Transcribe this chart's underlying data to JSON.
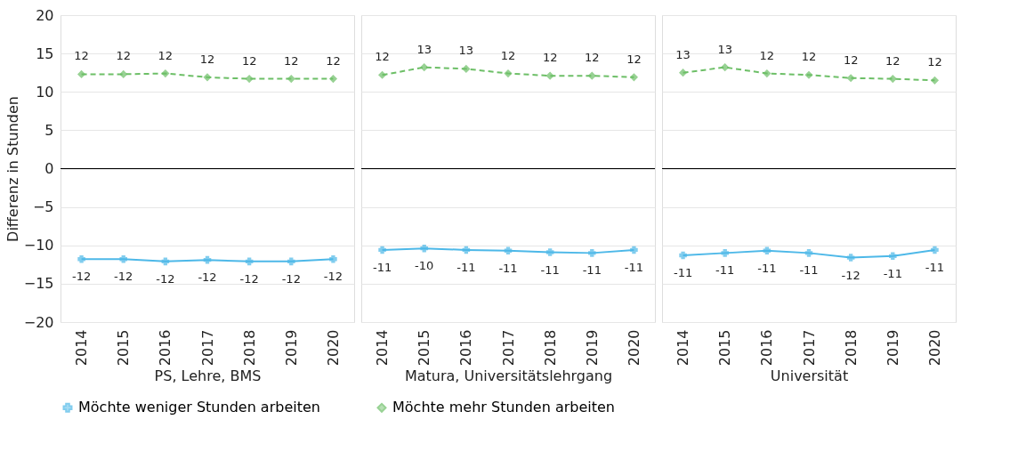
{
  "chart_data": [
    {
      "type": "line",
      "xlabel": "PS, Lehre, BMS",
      "ylabel": "Differenz in  Stunden",
      "categories": [
        "2014",
        "2015",
        "2016",
        "2017",
        "2018",
        "2019",
        "2020"
      ],
      "ylim": [
        -20,
        20
      ],
      "yticks": [
        -20,
        -15,
        -10,
        -5,
        0,
        5,
        10,
        15,
        20
      ],
      "grid": "y",
      "legend": "bottom",
      "ref_lines": [
        {
          "axis": "y",
          "value": 0,
          "color": "#000000"
        }
      ],
      "series": [
        {
          "name": "Möchte weniger Stunden arbeiten",
          "color": "#4db8e8",
          "marker": "cross",
          "line_style": "solid",
          "values": [
            -11.8,
            -11.8,
            -12.1,
            -11.9,
            -12.1,
            -12.1,
            -11.8
          ],
          "value_labels": [
            "-12",
            "-12",
            "-12",
            "-12",
            "-12",
            "-12",
            "-12"
          ]
        },
        {
          "name": "Möchte mehr Stunden arbeiten",
          "color": "#6dbf67",
          "marker": "diamond",
          "line_style": "dashed",
          "values": [
            12.3,
            12.3,
            12.4,
            11.9,
            11.7,
            11.7,
            11.7
          ],
          "value_labels": [
            "12",
            "12",
            "12",
            "12",
            "12",
            "12",
            "12"
          ]
        }
      ]
    },
    {
      "type": "line",
      "xlabel": "Matura, Universitätslehrgang",
      "categories": [
        "2014",
        "2015",
        "2016",
        "2017",
        "2018",
        "2019",
        "2020"
      ],
      "ylim": [
        -20,
        20
      ],
      "yticks": [
        -20,
        -15,
        -10,
        -5,
        0,
        5,
        10,
        15,
        20
      ],
      "grid": "y",
      "tick_labels": "x",
      "legend": "bottom",
      "ref_lines": [
        {
          "axis": "y",
          "value": 0,
          "color": "#000000"
        }
      ],
      "series": [
        {
          "name": "Möchte weniger Stunden arbeiten",
          "color": "#4db8e8",
          "marker": "cross",
          "line_style": "solid",
          "values": [
            -10.6,
            -10.4,
            -10.6,
            -10.7,
            -10.9,
            -11.0,
            -10.6
          ],
          "value_labels": [
            "-11",
            "-10",
            "-11",
            "-11",
            "-11",
            "-11",
            "-11"
          ]
        },
        {
          "name": "Möchte mehr Stunden arbeiten",
          "color": "#6dbf67",
          "marker": "diamond",
          "line_style": "dashed",
          "values": [
            12.2,
            13.2,
            13.0,
            12.4,
            12.1,
            12.1,
            11.9
          ],
          "value_labels": [
            "12",
            "13",
            "13",
            "12",
            "12",
            "12",
            "12"
          ]
        }
      ]
    },
    {
      "type": "line",
      "xlabel": "Universität",
      "categories": [
        "2014",
        "2015",
        "2016",
        "2017",
        "2018",
        "2019",
        "2020"
      ],
      "ylim": [
        -20,
        20
      ],
      "yticks": [
        -20,
        -15,
        -10,
        -5,
        0,
        5,
        10,
        15,
        20
      ],
      "grid": "y",
      "tick_labels": "x",
      "legend": "bottom",
      "ref_lines": [
        {
          "axis": "y",
          "value": 0,
          "color": "#000000"
        }
      ],
      "series": [
        {
          "name": "Möchte weniger Stunden arbeiten",
          "color": "#4db8e8",
          "marker": "cross",
          "line_style": "solid",
          "values": [
            -11.3,
            -11.0,
            -10.7,
            -11.0,
            -11.6,
            -11.4,
            -10.6
          ],
          "value_labels": [
            "-11",
            "-11",
            "-11",
            "-11",
            "-12",
            "-11",
            "-11"
          ]
        },
        {
          "name": "Möchte mehr Stunden arbeiten",
          "color": "#6dbf67",
          "marker": "diamond",
          "line_style": "dashed",
          "values": [
            12.5,
            13.2,
            12.4,
            12.2,
            11.8,
            11.7,
            11.5
          ],
          "value_labels": [
            "13",
            "13",
            "12",
            "12",
            "12",
            "12",
            "12"
          ]
        }
      ]
    }
  ]
}
